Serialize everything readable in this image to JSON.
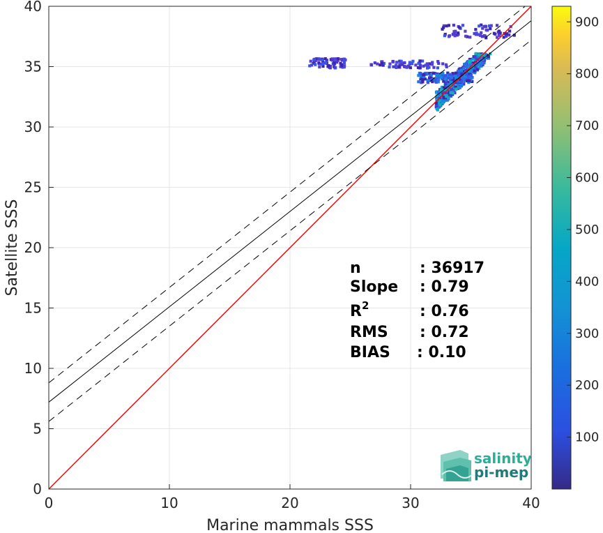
{
  "chart_data": {
    "type": "heatmap",
    "xlabel": "Marine mammals SSS",
    "ylabel": "Satellite SSS",
    "xlim": [
      0,
      40
    ],
    "ylim": [
      0,
      40
    ],
    "xticks": [
      0,
      10,
      20,
      30,
      40
    ],
    "yticks": [
      0,
      5,
      10,
      15,
      20,
      25,
      30,
      35,
      40
    ],
    "grid": true,
    "colorbar": {
      "colormap": "parula",
      "range": [
        0,
        930
      ],
      "ticks": [
        100,
        200,
        300,
        400,
        500,
        600,
        700,
        800,
        900
      ]
    },
    "lines": [
      {
        "name": "one-to-one",
        "color": "#ff0000",
        "style": "solid",
        "x": [
          0,
          40
        ],
        "y": [
          0,
          40
        ]
      },
      {
        "name": "regression",
        "color": "#000000",
        "style": "solid",
        "x": [
          0,
          40
        ],
        "y": [
          7.2,
          38.8
        ]
      },
      {
        "name": "upper-bound",
        "color": "#000000",
        "style": "dashed",
        "x": [
          0,
          40
        ],
        "y": [
          8.8,
          40.4
        ]
      },
      {
        "name": "lower-bound",
        "color": "#000000",
        "style": "dashed",
        "x": [
          0,
          40
        ],
        "y": [
          5.6,
          37.2
        ]
      }
    ],
    "density_regions": [
      {
        "x": [
          32,
          36.5
        ],
        "y": [
          31.5,
          36.2
        ],
        "level": "high",
        "note": "main cluster along diagonal"
      },
      {
        "x": [
          30.5,
          35
        ],
        "y": [
          33.8,
          34.6
        ],
        "level": "medium"
      },
      {
        "x": [
          21.5,
          24.5
        ],
        "y": [
          35.0,
          35.8
        ],
        "level": "low"
      },
      {
        "x": [
          26.5,
          33
        ],
        "y": [
          35.0,
          35.6
        ],
        "level": "low"
      },
      {
        "x": [
          32.5,
          38.5
        ],
        "y": [
          37.5,
          38.6
        ],
        "level": "low"
      }
    ],
    "stats": [
      {
        "label": "n",
        "value": ": 36917"
      },
      {
        "label": "Slope",
        "value": ": 0.79"
      },
      {
        "label": "R",
        "sup": "2",
        "value": ": 0.76"
      },
      {
        "label": "RMS",
        "value": ": 0.72"
      },
      {
        "label": "BIAS",
        "value": ": 0.10"
      }
    ]
  },
  "logo": {
    "line1": "salinity",
    "line2": "pi-mep"
  }
}
